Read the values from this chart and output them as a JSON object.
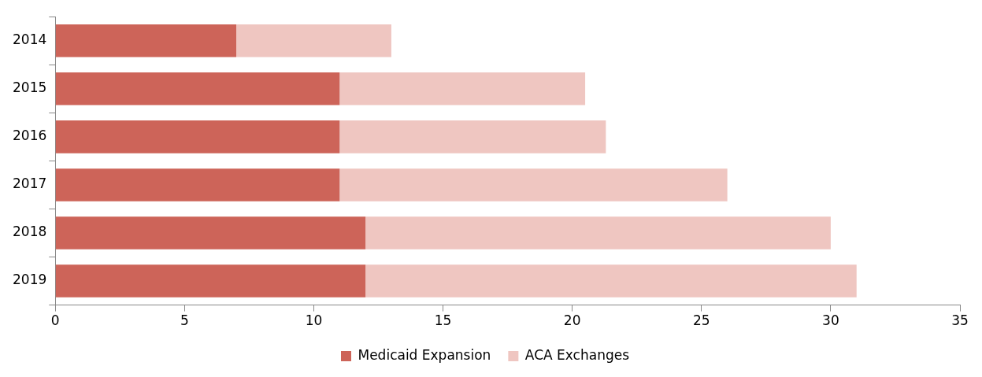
{
  "chart_data": {
    "type": "bar",
    "orientation": "horizontal",
    "stacked": true,
    "categories": [
      "2014",
      "2015",
      "2016",
      "2017",
      "2018",
      "2019"
    ],
    "series": [
      {
        "name": "Medicaid Expansion",
        "color": "#cd6459",
        "values": [
          7,
          11,
          11,
          11,
          12,
          12
        ]
      },
      {
        "name": "ACA Exchanges",
        "color": "#efc6c1",
        "values": [
          6,
          9.5,
          10.3,
          15,
          18,
          19
        ]
      }
    ],
    "xlim": [
      0,
      35
    ],
    "xticks": [
      0,
      5,
      10,
      15,
      20,
      25,
      30,
      35
    ],
    "grid": false,
    "legend": "bottom"
  }
}
